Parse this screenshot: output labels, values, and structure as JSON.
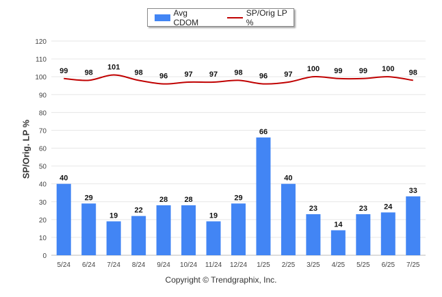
{
  "legend": {
    "bar_label": "Avg CDOM",
    "line_label": "SP/Orig LP %"
  },
  "ylabel": "SP/Orig. LP %",
  "footer": "Copyright © Trendgraphix, Inc.",
  "colors": {
    "bar": "#4285f4",
    "line": "#c00000",
    "grid": "#e6e6e6"
  },
  "chart_data": {
    "type": "bar",
    "categories": [
      "5/24",
      "6/24",
      "7/24",
      "8/24",
      "9/24",
      "10/24",
      "11/24",
      "12/24",
      "1/25",
      "2/25",
      "3/25",
      "4/25",
      "5/25",
      "6/25",
      "7/25"
    ],
    "series": [
      {
        "name": "Avg CDOM",
        "type": "bar",
        "values": [
          40,
          29,
          19,
          22,
          28,
          28,
          19,
          29,
          66,
          40,
          23,
          14,
          23,
          24,
          33
        ]
      },
      {
        "name": "SP/Orig LP %",
        "type": "line",
        "values": [
          99,
          98,
          101,
          98,
          96,
          97,
          97,
          98,
          96,
          97,
          100,
          99,
          99,
          100,
          98
        ]
      }
    ],
    "ylabel": "SP/Orig. LP %",
    "ylim": [
      0,
      120
    ],
    "yticks": [
      0,
      10,
      20,
      30,
      40,
      50,
      60,
      70,
      80,
      90,
      100,
      110,
      120
    ],
    "grid": true,
    "legend_position": "top-center"
  }
}
